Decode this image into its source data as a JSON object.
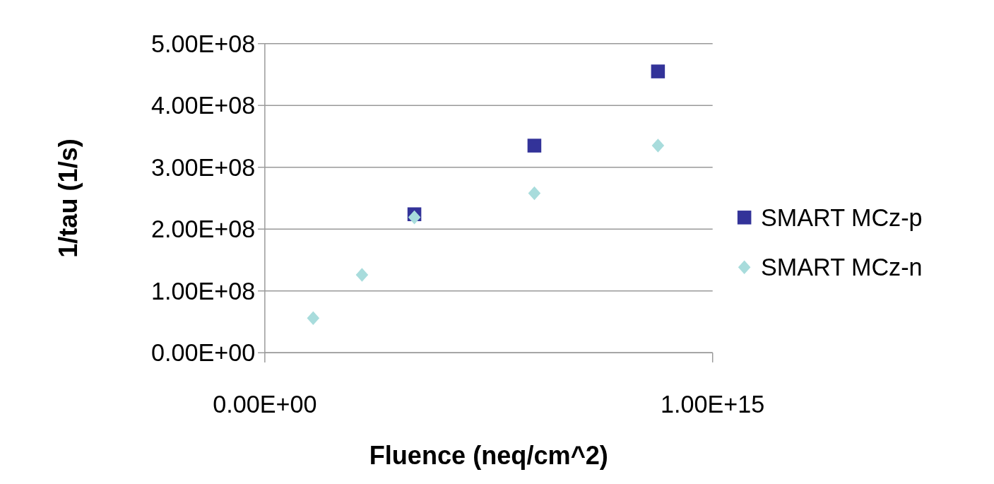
{
  "chart_data": {
    "type": "scatter",
    "xlabel": "Fluence (neq/cm^2)",
    "ylabel": "1/tau (1/s)",
    "xlim": [
      0,
      1000000000000000.0
    ],
    "xticks": [
      {
        "value": 0,
        "label": "0.00E+00"
      },
      {
        "value": 1000000000000000.0,
        "label": "1.00E+15"
      }
    ],
    "ylim": [
      0,
      500000000.0
    ],
    "yticks": [
      {
        "value": 0,
        "label": "0.00E+00"
      },
      {
        "value": 100000000.0,
        "label": "1.00E+08"
      },
      {
        "value": 200000000.0,
        "label": "2.00E+08"
      },
      {
        "value": 300000000.0,
        "label": "3.00E+08"
      },
      {
        "value": 400000000.0,
        "label": "4.00E+08"
      },
      {
        "value": 500000000.0,
        "label": "5.00E+08"
      }
    ],
    "grid": "y",
    "legend": "right",
    "series": [
      {
        "name": "SMART MCz-p",
        "color": "#333399",
        "marker": "square",
        "x": [
          334000000000000.0,
          602000000000000.0,
          878000000000000.0
        ],
        "values": [
          224000000.0,
          335000000.0,
          455000000.0
        ]
      },
      {
        "name": "SMART MCz-n",
        "color": "#a8dcdc",
        "marker": "diamond",
        "x": [
          108000000000000.0,
          217000000000000.0,
          334000000000000.0,
          602000000000000.0,
          878000000000000.0
        ],
        "values": [
          56000000.0,
          126000000.0,
          219000000.0,
          258000000.0,
          335000000.0
        ]
      }
    ]
  }
}
